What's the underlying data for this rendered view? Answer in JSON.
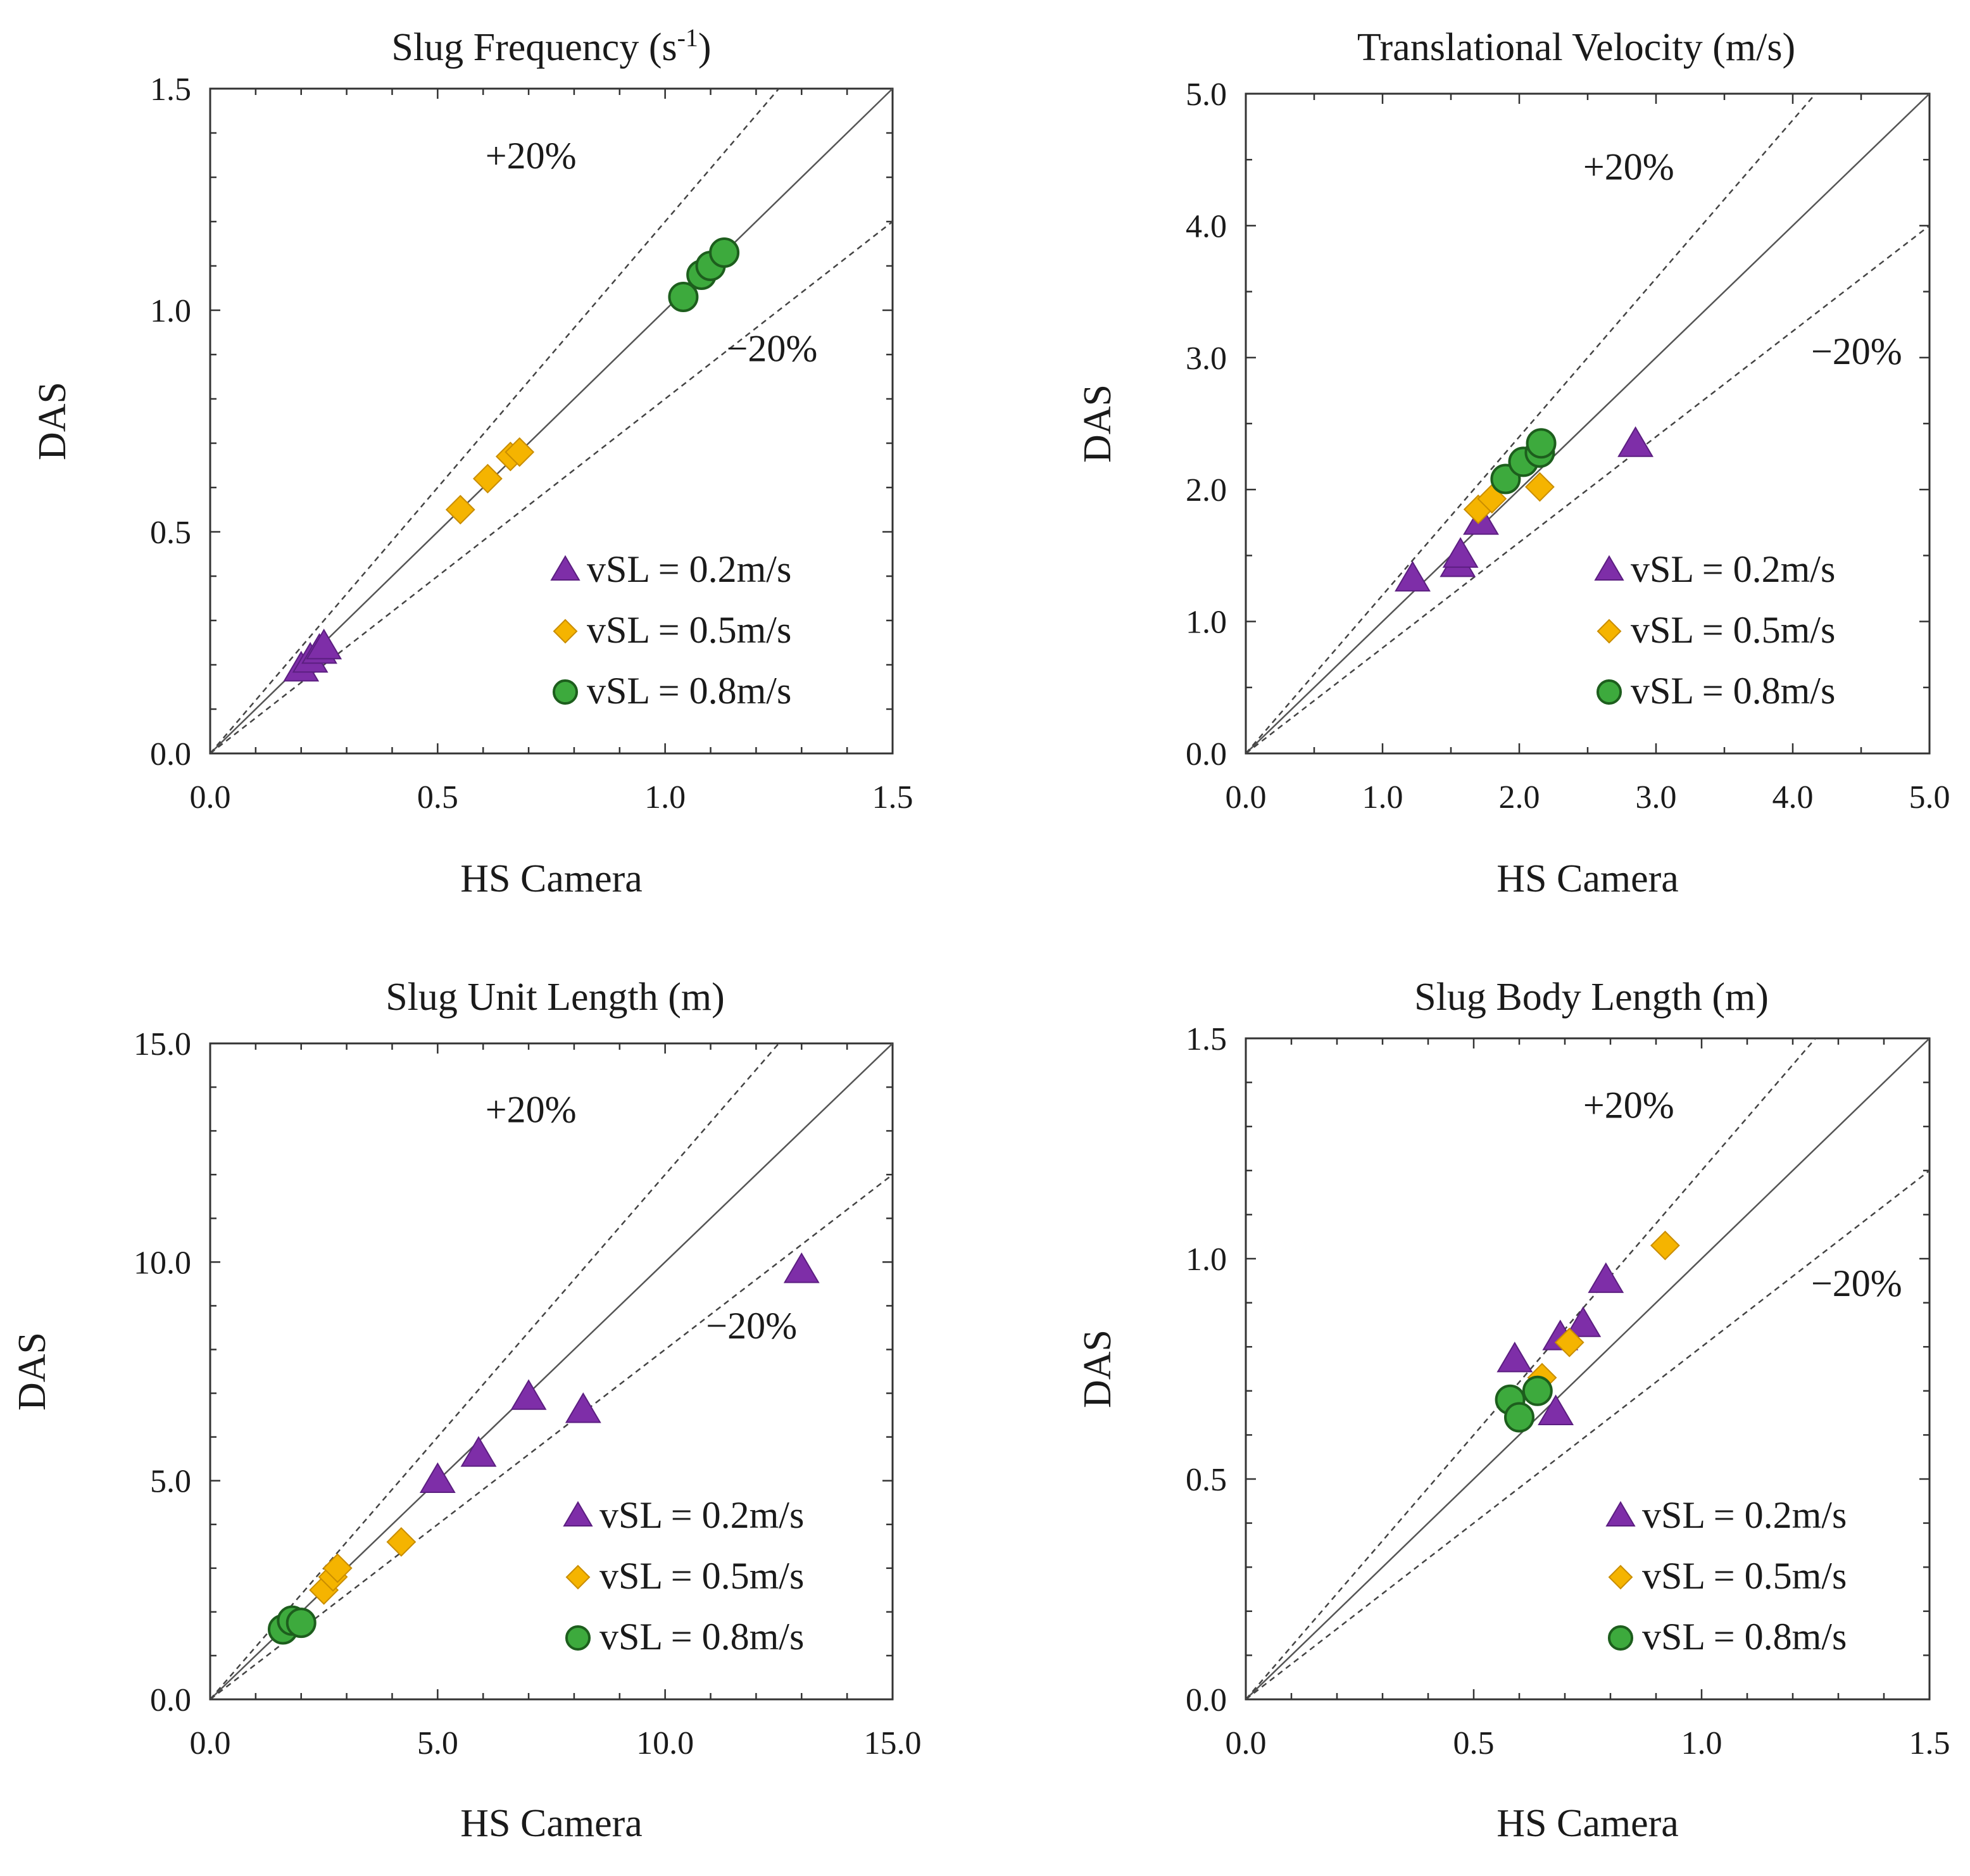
{
  "page": {
    "domain": "Chart"
  },
  "chart_data": [
    {
      "type": "scatter",
      "title": "Slug Frequency (s",
      "title_sup": "-1",
      "title_suffix": ")",
      "xlabel": "HS Camera",
      "ylabel": "DAS",
      "xlim": [
        0,
        1.5
      ],
      "ylim": [
        0,
        1.5
      ],
      "major_ticks": [
        0,
        0.5,
        1.0,
        1.5
      ],
      "minor_step": 0.1,
      "tick_labels": [
        "0.0",
        "0.5",
        "1.0",
        "1.5"
      ],
      "annotations": {
        "plus": "+20%",
        "minus": "−20%"
      },
      "legend": [
        "vSL = 0.2m/s",
        "vSL = 0.5m/s",
        "vSL = 0.8m/s"
      ],
      "series": [
        {
          "name": "vSL = 0.2m/s",
          "marker": "triangle",
          "color": "#7E2EA8",
          "points": [
            [
              0.2,
              0.19
            ],
            [
              0.22,
              0.21
            ],
            [
              0.24,
              0.23
            ],
            [
              0.25,
              0.24
            ]
          ]
        },
        {
          "name": "vSL = 0.5m/s",
          "marker": "diamond",
          "color": "#F5B400",
          "points": [
            [
              0.55,
              0.55
            ],
            [
              0.61,
              0.62
            ],
            [
              0.66,
              0.67
            ],
            [
              0.68,
              0.68
            ]
          ]
        },
        {
          "name": "vSL = 0.8m/s",
          "marker": "circle",
          "color": "#3DAA3D",
          "points": [
            [
              1.04,
              1.03
            ],
            [
              1.08,
              1.08
            ],
            [
              1.1,
              1.1
            ],
            [
              1.13,
              1.13
            ]
          ]
        }
      ]
    },
    {
      "type": "scatter",
      "title": "Translational Velocity (m/s)",
      "xlabel": "HS Camera",
      "ylabel": "DAS",
      "xlim": [
        0,
        5.0
      ],
      "ylim": [
        0,
        5.0
      ],
      "major_ticks": [
        0,
        1,
        2,
        3,
        4,
        5
      ],
      "minor_step": 0.5,
      "tick_labels": [
        "0.0",
        "1.0",
        "2.0",
        "3.0",
        "4.0",
        "5.0"
      ],
      "annotations": {
        "plus": "+20%",
        "minus": "−20%"
      },
      "legend": [
        "vSL = 0.2m/s",
        "vSL = 0.5m/s",
        "vSL = 0.8m/s"
      ],
      "series": [
        {
          "name": "vSL = 0.2m/s",
          "marker": "triangle",
          "color": "#7E2EA8",
          "points": [
            [
              1.22,
              1.32
            ],
            [
              1.55,
              1.43
            ],
            [
              1.57,
              1.5
            ],
            [
              1.72,
              1.75
            ],
            [
              2.85,
              2.34
            ]
          ]
        },
        {
          "name": "vSL = 0.5m/s",
          "marker": "diamond",
          "color": "#F5B400",
          "points": [
            [
              1.7,
              1.85
            ],
            [
              1.8,
              1.93
            ],
            [
              2.15,
              2.02
            ]
          ]
        },
        {
          "name": "vSL = 0.8m/s",
          "marker": "circle",
          "color": "#3DAA3D",
          "points": [
            [
              1.9,
              2.08
            ],
            [
              2.03,
              2.21
            ],
            [
              2.15,
              2.28
            ],
            [
              2.16,
              2.35
            ]
          ]
        }
      ]
    },
    {
      "type": "scatter",
      "title": "Slug Unit Length (m)",
      "xlabel": "HS Camera",
      "ylabel": "DAS",
      "xlim": [
        0,
        15.0
      ],
      "ylim": [
        0,
        15.0
      ],
      "major_ticks": [
        0,
        5,
        10,
        15
      ],
      "minor_step": 1.0,
      "tick_labels": [
        "0.0",
        "5.0",
        "10.0",
        "15.0"
      ],
      "annotations": {
        "plus": "+20%",
        "minus": "−20%"
      },
      "legend": [
        "vSL = 0.2m/s",
        "vSL = 0.5m/s",
        "vSL = 0.8m/s"
      ],
      "series": [
        {
          "name": "vSL = 0.2m/s",
          "marker": "triangle",
          "color": "#7E2EA8",
          "points": [
            [
              5.0,
              5.0
            ],
            [
              5.9,
              5.6
            ],
            [
              7.0,
              6.9
            ],
            [
              8.2,
              6.6
            ],
            [
              13.0,
              9.8
            ]
          ]
        },
        {
          "name": "vSL = 0.5m/s",
          "marker": "diamond",
          "color": "#F5B400",
          "points": [
            [
              2.5,
              2.5
            ],
            [
              2.7,
              2.8
            ],
            [
              2.8,
              3.0
            ],
            [
              4.2,
              3.6
            ]
          ]
        },
        {
          "name": "vSL = 0.8m/s",
          "marker": "circle",
          "color": "#3DAA3D",
          "points": [
            [
              1.6,
              1.6
            ],
            [
              1.8,
              1.8
            ],
            [
              2.0,
              1.75
            ]
          ]
        }
      ]
    },
    {
      "type": "scatter",
      "title": "Slug Body Length (m)",
      "xlabel": "HS Camera",
      "ylabel": "DAS",
      "xlim": [
        0,
        1.5
      ],
      "ylim": [
        0,
        1.5
      ],
      "major_ticks": [
        0,
        0.5,
        1.0,
        1.5
      ],
      "minor_step": 0.1,
      "tick_labels": [
        "0.0",
        "0.5",
        "1.0",
        "1.5"
      ],
      "annotations": {
        "plus": "+20%",
        "minus": "−20%"
      },
      "legend": [
        "vSL = 0.2m/s",
        "vSL = 0.5m/s",
        "vSL = 0.8m/s"
      ],
      "series": [
        {
          "name": "vSL = 0.2m/s",
          "marker": "triangle",
          "color": "#7E2EA8",
          "points": [
            [
              0.59,
              0.77
            ],
            [
              0.69,
              0.82
            ],
            [
              0.74,
              0.85
            ],
            [
              0.79,
              0.95
            ],
            [
              0.68,
              0.65
            ]
          ]
        },
        {
          "name": "vSL = 0.5m/s",
          "marker": "diamond",
          "color": "#F5B400",
          "points": [
            [
              0.65,
              0.73
            ],
            [
              0.71,
              0.81
            ],
            [
              0.92,
              1.03
            ]
          ]
        },
        {
          "name": "vSL = 0.8m/s",
          "marker": "circle",
          "color": "#3DAA3D",
          "points": [
            [
              0.58,
              0.68
            ],
            [
              0.6,
              0.64
            ],
            [
              0.64,
              0.7
            ]
          ]
        }
      ]
    }
  ]
}
